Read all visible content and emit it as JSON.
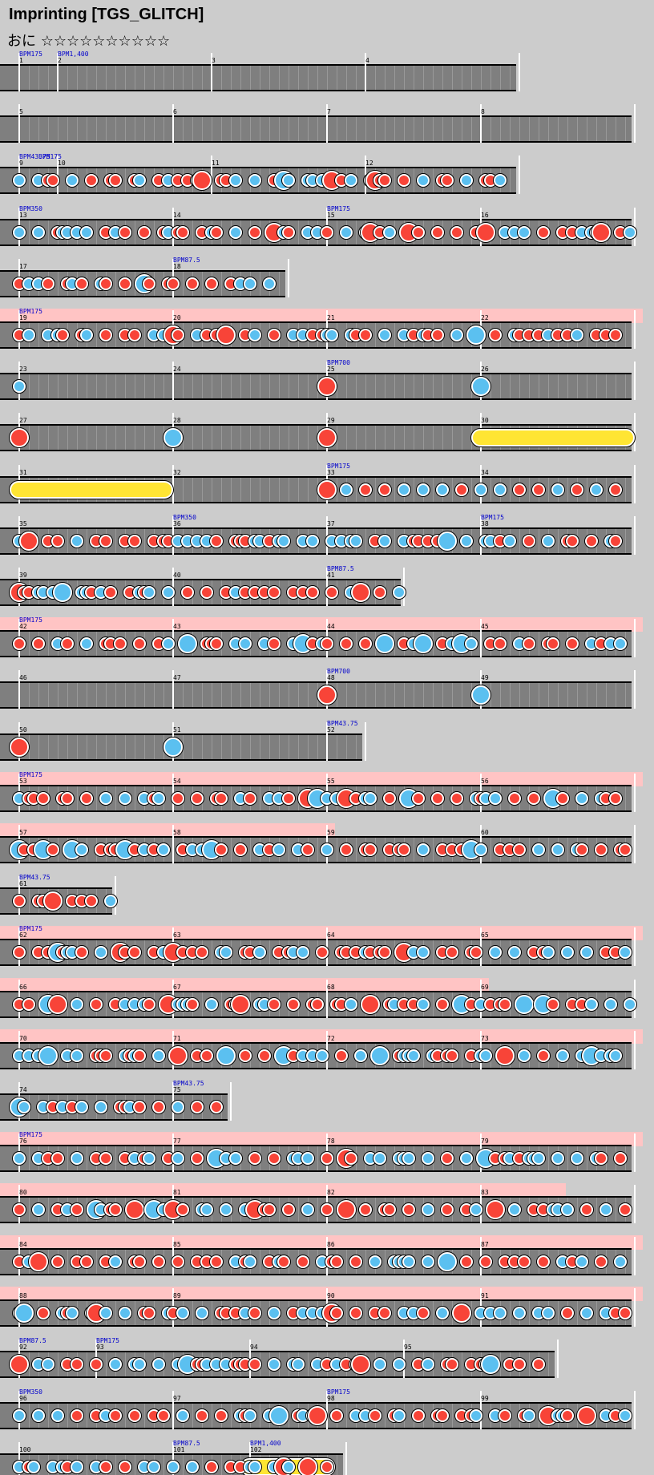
{
  "song": {
    "title": "Imprinting [TGS_GLITCH]",
    "difficulty": "おに",
    "stars": "☆☆☆☆☆☆☆☆☆☆"
  },
  "colors": {
    "background": "#cccccc",
    "lane": "#7f7f7f",
    "gogo": "#ffc4c4",
    "don": "#f84438",
    "ka": "#5bc0f0",
    "roll": "#ffe533",
    "bpm_text": "#0000cc"
  },
  "rows": [
    {
      "m": [
        1,
        2,
        3,
        4
      ],
      "len": [
        1,
        4,
        4,
        4
      ],
      "bpm": [
        [
          0,
          "BPM175"
        ],
        [
          1,
          "BPM1,400"
        ]
      ],
      "d": 4,
      "n": ""
    },
    {
      "m": [
        5,
        6,
        7,
        8
      ],
      "len": [
        4,
        4,
        4,
        4
      ],
      "d": 4,
      "n": ""
    },
    {
      "m": [
        9,
        10,
        11,
        12
      ],
      "len": [
        1,
        4,
        4,
        4
      ],
      "bpm": [
        [
          0,
          "BPM43.75"
        ],
        [
          0.5,
          "BPM175"
        ]
      ],
      "d": 4,
      "n": "..........",
      "n2": [
        "D",
        0,
        "d",
        "k",
        "d",
        "d",
        "k",
        "d",
        "ddkkkd",
        "d",
        "d",
        "d",
        "k",
        "d",
        "d",
        "ddkkd",
        "d",
        "d",
        "D",
        "k",
        "k",
        "k",
        "d"
      ]
    },
    {
      "m": [
        13,
        14,
        15,
        16
      ],
      "len": [
        4,
        4,
        4,
        4
      ],
      "bpm": [
        [
          0,
          "BPM350"
        ],
        [
          8,
          "BPM175"
        ]
      ],
      "d": 4,
      "n": ""
    },
    {
      "m": [
        17,
        18
      ],
      "len": [
        4,
        3
      ],
      "bpm": [
        [
          4,
          "BPM87.5"
        ]
      ],
      "d": 4,
      "n": ""
    },
    {
      "m": [
        19,
        20,
        21,
        22
      ],
      "len": [
        4,
        4,
        4,
        4
      ],
      "bpm": [
        [
          0,
          "BPM175"
        ]
      ],
      "gogo": [
        0,
        16
      ],
      "d": 4,
      "n": ""
    },
    {
      "m": [
        23,
        24,
        25,
        26
      ],
      "len": [
        4,
        4,
        4,
        4
      ],
      "bpm": [
        [
          8,
          "BPM700"
        ]
      ],
      "d": 4,
      "n": ""
    },
    {
      "m": [
        27,
        28,
        29,
        30
      ],
      "len": [
        4,
        4,
        4,
        4
      ],
      "d": 4,
      "n": ""
    },
    {
      "m": [
        31,
        32,
        33,
        34
      ],
      "len": [
        4,
        4,
        4,
        4
      ],
      "bpm": [
        [
          8,
          "BPM175"
        ]
      ],
      "d": 4,
      "n": ""
    },
    {
      "m": [
        35,
        36,
        37,
        38
      ],
      "len": [
        4,
        4,
        4,
        4
      ],
      "bpm": [
        [
          4,
          "BPM350"
        ],
        [
          12,
          "BPM175"
        ]
      ],
      "d": 4,
      "n": ""
    },
    {
      "m": [
        39,
        40,
        41
      ],
      "len": [
        4,
        4,
        2
      ],
      "bpm": [
        [
          8,
          "BPM87.5"
        ]
      ],
      "d": 4,
      "n": ""
    },
    {
      "m": [
        42,
        43,
        44,
        45
      ],
      "len": [
        4,
        4,
        4,
        4
      ],
      "bpm": [
        [
          0,
          "BPM175"
        ]
      ],
      "gogo": [
        0,
        16
      ],
      "d": 4,
      "n": ""
    },
    {
      "m": [
        46,
        47,
        48,
        49
      ],
      "len": [
        4,
        4,
        4,
        4
      ],
      "bpm": [
        [
          8,
          "BPM700"
        ]
      ],
      "d": 4,
      "n": ""
    },
    {
      "m": [
        50,
        51,
        52
      ],
      "len": [
        4,
        4,
        1
      ],
      "bpm": [
        [
          8,
          "BPM43.75"
        ]
      ],
      "d": 4,
      "n": ""
    },
    {
      "m": [
        53,
        54,
        55,
        56
      ],
      "len": [
        4,
        4,
        4,
        4
      ],
      "bpm": [
        [
          0,
          "BPM175"
        ]
      ],
      "gogo": [
        0,
        16
      ],
      "d": 4,
      "n": ""
    },
    {
      "m": [
        57,
        58,
        59,
        60
      ],
      "len": [
        4,
        4,
        4,
        4
      ],
      "gogo": [
        0,
        8
      ],
      "d": 4,
      "n": ""
    },
    {
      "m": [
        61
      ],
      "len": [
        2.5
      ],
      "bpm": [
        [
          0,
          "BPM43.75"
        ]
      ],
      "d": 4,
      "n": ""
    },
    {
      "m": [
        62,
        63,
        64,
        65
      ],
      "len": [
        4,
        4,
        4,
        4
      ],
      "bpm": [
        [
          0,
          "BPM175"
        ]
      ],
      "gogo": [
        0,
        16
      ],
      "d": 4,
      "n": ""
    },
    {
      "m": [
        66,
        67,
        68,
        69
      ],
      "len": [
        4,
        4,
        4,
        4
      ],
      "gogo": [
        0,
        12
      ],
      "d": 4,
      "n": ""
    },
    {
      "m": [
        70,
        71,
        72,
        73
      ],
      "len": [
        4,
        4,
        4,
        4
      ],
      "gogo": [
        0,
        16
      ],
      "d": 4,
      "n": ""
    },
    {
      "m": [
        74,
        75
      ],
      "len": [
        4,
        1.5
      ],
      "bpm": [
        [
          4,
          "BPM43.75"
        ]
      ],
      "d": 4,
      "n": ""
    },
    {
      "m": [
        76,
        77,
        78,
        79
      ],
      "len": [
        4,
        4,
        4,
        4
      ],
      "bpm": [
        [
          0,
          "BPM175"
        ]
      ],
      "gogo": [
        0,
        16
      ],
      "d": 4,
      "n": ""
    },
    {
      "m": [
        80,
        81,
        82,
        83
      ],
      "len": [
        4,
        4,
        4,
        4
      ],
      "gogo": [
        0,
        14
      ],
      "d": 4,
      "n": ""
    },
    {
      "m": [
        84,
        85,
        86,
        87
      ],
      "len": [
        4,
        4,
        4,
        4
      ],
      "gogo": [
        0,
        16
      ],
      "d": 4,
      "n": ""
    },
    {
      "m": [
        88,
        89,
        90,
        91
      ],
      "len": [
        4,
        4,
        4,
        4
      ],
      "gogo": [
        0,
        16
      ],
      "d": 4,
      "n": ""
    },
    {
      "m": [
        92,
        93,
        94,
        95
      ],
      "len": [
        2,
        4,
        4,
        4
      ],
      "bpm": [
        [
          0,
          "BPM87.5"
        ],
        [
          2,
          "BPM175"
        ]
      ],
      "d": 4,
      "n": ""
    },
    {
      "m": [
        96,
        97,
        98,
        99
      ],
      "len": [
        4,
        4,
        4,
        4
      ],
      "bpm": [
        [
          0,
          "BPM350"
        ],
        [
          8,
          "BPM175"
        ]
      ],
      "d": 4,
      "n": ""
    },
    {
      "m": [
        100,
        101,
        102
      ],
      "len": [
        4,
        2,
        2.5
      ],
      "bpm": [
        [
          4,
          "BPM87.5"
        ],
        [
          6,
          "BPM1,400"
        ]
      ],
      "d": 4,
      "n": ""
    }
  ]
}
